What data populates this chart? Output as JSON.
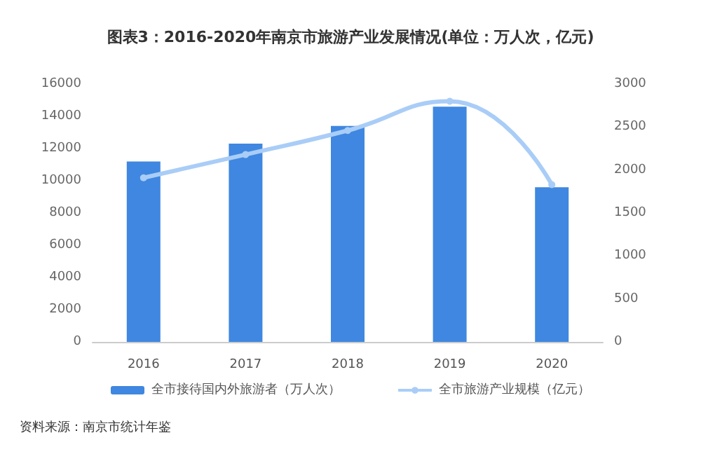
{
  "chart_data": {
    "type": "bar",
    "title": "图表3：2016-2020年南京市旅游产业发展情况(单位：万人次，亿元)",
    "categories": [
      "2016",
      "2017",
      "2018",
      "2019",
      "2020"
    ],
    "series": [
      {
        "name": "全市接待国内外旅游者（万人次）",
        "color": "#3f87e0",
        "values": [
          11200,
          12300,
          13400,
          14600,
          9600
        ]
      },
      {
        "name": "全市旅游产业规模（亿元）",
        "type": "line",
        "axis": "y2",
        "color": "#a9cdf7",
        "values": [
          1910,
          2180,
          2460,
          2800,
          1830
        ]
      }
    ],
    "ylim": [
      0,
      16000
    ],
    "yticks": [
      0,
      2000,
      4000,
      6000,
      8000,
      10000,
      12000,
      14000,
      16000
    ],
    "y2lim": [
      0,
      3000
    ],
    "y2ticks": [
      0,
      500,
      1000,
      1500,
      2000,
      2500,
      3000
    ],
    "grid": false,
    "legend": "bottom",
    "marker": "circle",
    "annotations": [
      "资料来源：南京市统计年鉴"
    ]
  }
}
